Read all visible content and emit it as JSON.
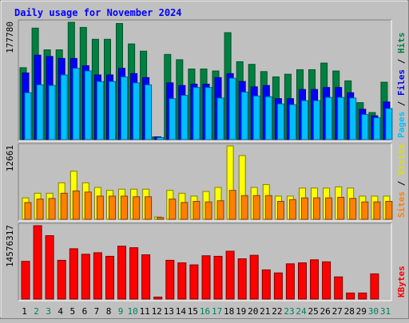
{
  "chart_data": [
    {
      "type": "bar",
      "title": "Daily usage for November 2024",
      "xlabel": "",
      "ylabel": "",
      "y_tick_label": "177780",
      "ylim": [
        0,
        177780
      ],
      "right_labels": [
        "Pages",
        "Files",
        "Hits"
      ],
      "categories": [
        "1",
        "2",
        "3",
        "4",
        "5",
        "6",
        "7",
        "8",
        "9",
        "10",
        "11",
        "12",
        "13",
        "14",
        "15",
        "16",
        "17",
        "18",
        "19",
        "20",
        "21",
        "22",
        "23",
        "24",
        "25",
        "26",
        "27",
        "28",
        "29",
        "30",
        "31"
      ],
      "series": [
        {
          "name": "Hits",
          "color": "#008040",
          "values": [
            109000,
            169000,
            136000,
            136000,
            177780,
            170000,
            152000,
            152000,
            176000,
            145000,
            134000,
            4000,
            129000,
            121000,
            107000,
            107000,
            104000,
            162000,
            118000,
            114000,
            103000,
            95000,
            99000,
            106000,
            106000,
            116000,
            104000,
            89000,
            56000,
            41000,
            87000
          ]
        },
        {
          "name": "Files",
          "color": "#0000ff",
          "values": [
            101000,
            128000,
            126000,
            123000,
            123000,
            112000,
            98000,
            98000,
            108000,
            100000,
            94000,
            4000,
            86000,
            82000,
            84000,
            84000,
            94000,
            100000,
            88000,
            80000,
            82000,
            62000,
            62000,
            76000,
            76000,
            79000,
            79000,
            71000,
            46000,
            36000,
            57000
          ]
        },
        {
          "name": "Pages",
          "color": "#00bfff",
          "values": [
            71000,
            83000,
            82000,
            98000,
            108000,
            104000,
            88000,
            88000,
            95000,
            86000,
            83000,
            3000,
            62000,
            67000,
            79000,
            79000,
            63000,
            93000,
            72000,
            66000,
            65000,
            54000,
            53000,
            59000,
            59000,
            64000,
            64000,
            63000,
            38000,
            33000,
            47000
          ]
        }
      ]
    },
    {
      "type": "bar",
      "xlabel": "",
      "ylabel": "",
      "y_tick_label": "12661",
      "ylim": [
        0,
        12661
      ],
      "right_labels": [
        "Sites",
        "Visits"
      ],
      "categories": [
        "1",
        "2",
        "3",
        "4",
        "5",
        "6",
        "7",
        "8",
        "9",
        "10",
        "11",
        "12",
        "13",
        "14",
        "15",
        "16",
        "17",
        "18",
        "19",
        "20",
        "21",
        "22",
        "23",
        "24",
        "25",
        "26",
        "27",
        "28",
        "29",
        "30",
        "31"
      ],
      "series": [
        {
          "name": "Visits",
          "color": "#ffff00",
          "values": [
            3700,
            4500,
            4500,
            6300,
            8300,
            6300,
            5500,
            5000,
            5200,
            5200,
            5200,
            400,
            5000,
            4500,
            4000,
            4800,
            5500,
            12661,
            11000,
            5500,
            6000,
            4000,
            4000,
            5400,
            5400,
            5400,
            5600,
            5400,
            4000,
            4000,
            4000
          ]
        },
        {
          "name": "Sites",
          "color": "#ff8000",
          "values": [
            2900,
            3500,
            3600,
            4500,
            4900,
            4700,
            4000,
            4000,
            4000,
            3900,
            3900,
            300,
            3500,
            2900,
            3100,
            3000,
            3200,
            5000,
            4100,
            4100,
            4100,
            3100,
            3400,
            3700,
            3700,
            3700,
            3800,
            3600,
            3000,
            3000,
            3100
          ]
        }
      ]
    },
    {
      "type": "bar",
      "xlabel": "",
      "ylabel": "",
      "y_tick_label": "14576317",
      "ylim": [
        0,
        14576317
      ],
      "right_labels": [
        "KBytes"
      ],
      "categories": [
        "1",
        "2",
        "3",
        "4",
        "5",
        "6",
        "7",
        "8",
        "9",
        "10",
        "11",
        "12",
        "13",
        "14",
        "15",
        "16",
        "17",
        "18",
        "19",
        "20",
        "21",
        "22",
        "23",
        "24",
        "25",
        "26",
        "27",
        "28",
        "29",
        "30",
        "31"
      ],
      "series": [
        {
          "name": "KBytes",
          "color": "#ff0000",
          "values": [
            7500000,
            14576317,
            12600000,
            7700000,
            10000000,
            8900000,
            9200000,
            8500000,
            10500000,
            10200000,
            8800000,
            400000,
            7700000,
            7200000,
            6800000,
            8600000,
            8500000,
            9500000,
            8000000,
            8700000,
            5800000,
            5200000,
            7000000,
            7200000,
            7800000,
            7400000,
            4400000,
            1200000,
            1200000,
            5000000,
            0
          ]
        }
      ]
    }
  ],
  "weekend_days": [
    "2",
    "3",
    "9",
    "10",
    "16",
    "17",
    "23",
    "24",
    "30",
    "31"
  ],
  "colors": {
    "background": "#c0c0c0",
    "title": "#0000ff",
    "weekday_label": "#000000",
    "weekend_label": "#00805c"
  }
}
